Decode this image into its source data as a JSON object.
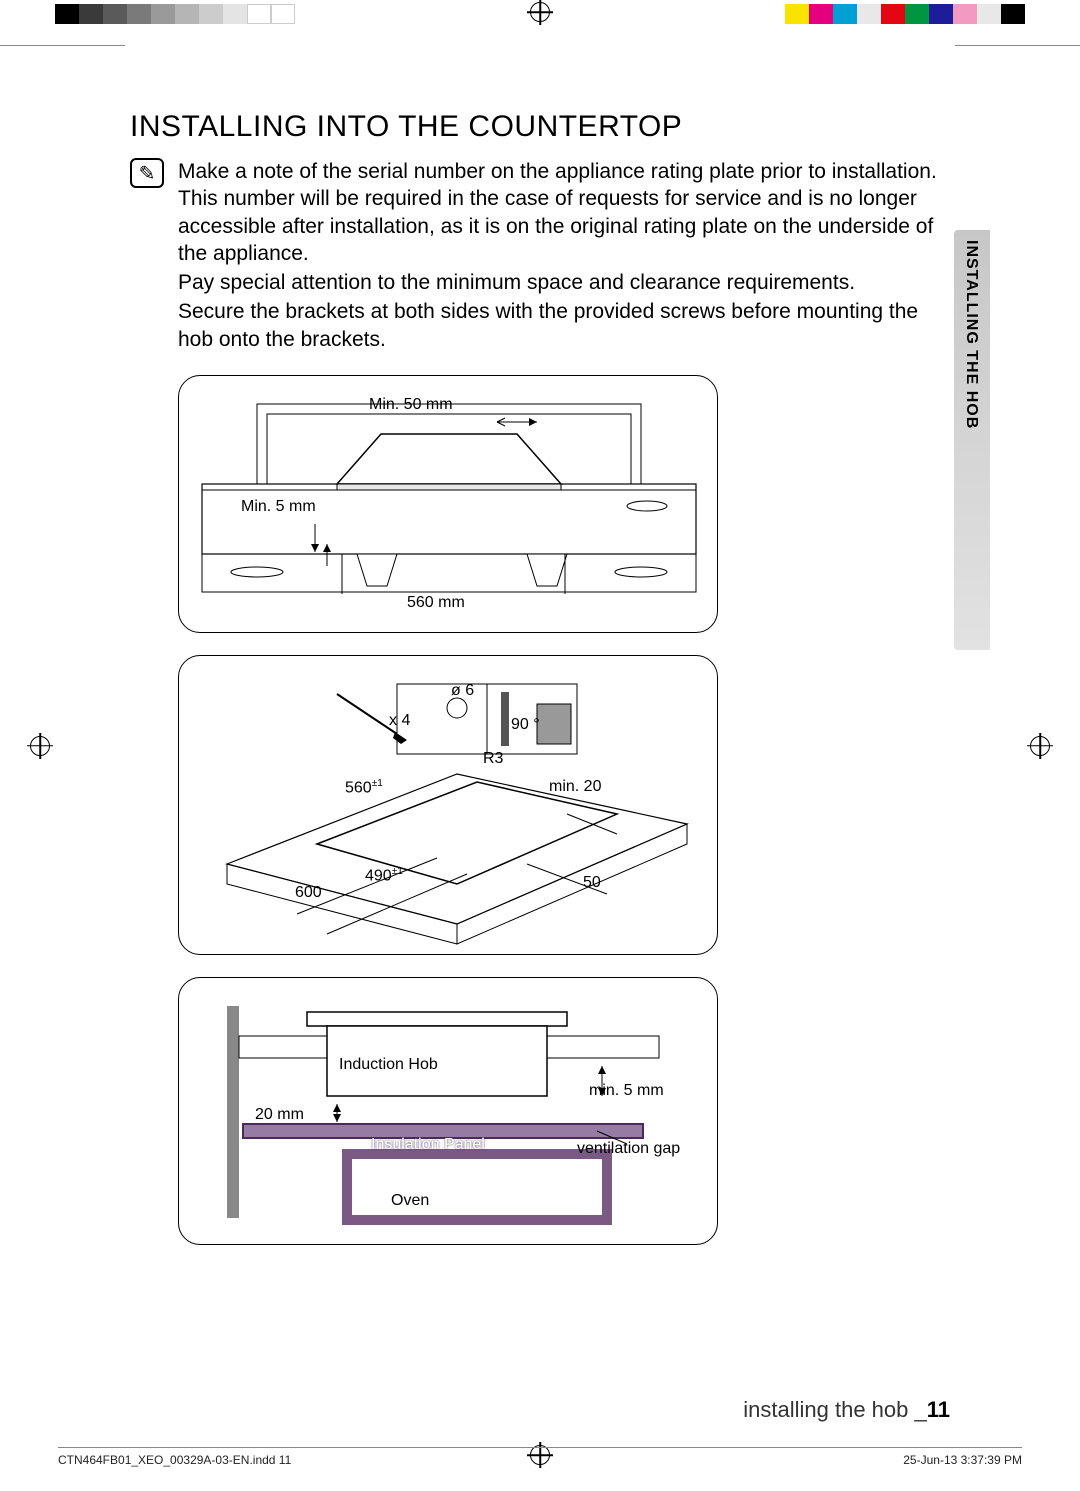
{
  "colorBars": [
    "#000000",
    "#3a3a3a",
    "#5a5a5a",
    "#7a7a7a",
    "#9a9a9a",
    "#b5b5b5",
    "#cccccc",
    "#e4e4e4",
    "#ffffff",
    "#ffffff",
    "#f9e400",
    "#e5007e",
    "#00a0d2",
    "#e8e8e8",
    "#e30613",
    "#009640",
    "#1d1d9b",
    "#f29ac1",
    "#e8e8e8",
    "#000000"
  ],
  "heading": "INSTALLING INTO THE COUNTERTOP",
  "noteIcon": "✎",
  "noteText": "Make a note of the serial number on the appliance rating plate prior to installation. This number will be required in the case of requests for service and is no longer accessible after installation, as it is on the original rating plate on the underside of the appliance.",
  "extra1": "Pay special attention to the minimum space and clearance requirements.",
  "extra2": "Secure the brackets at both sides with the provided screws before mounting the hob onto the brackets.",
  "sideTab": "INSTALLING THE HOB",
  "diagram1": {
    "labels": {
      "min50": "Min. 50 mm",
      "min5": "Min. 5 mm",
      "w560": "560 mm"
    }
  },
  "diagram2": {
    "labels": {
      "d6": "ø 6",
      "x4": "x 4",
      "a90": "90 °",
      "r3": "R3",
      "d560": "560",
      "pm1a": "±1",
      "d490": "490",
      "pm1b": "±1",
      "d600": "600",
      "min20": "min. 20",
      "d50": "50"
    }
  },
  "diagram3": {
    "labels": {
      "ind": "Induction Hob",
      "min5": "min. 5 mm",
      "g20": "20 mm",
      "insul": "Insulation Panel",
      "vent": "ventilation gap",
      "oven": "Oven"
    },
    "colors": {
      "hob": "#ffffff",
      "panelFill": "#967ba5",
      "panelStroke": "#4a2a58",
      "ovenFill": "#7a5a84",
      "ovenStroke": "#4a2a58",
      "wall": "#888"
    }
  },
  "footer": {
    "text": "installing the hob _",
    "page": "11"
  },
  "printFooter": {
    "file": "CTN464FB01_XEO_00329A-03-EN.indd   11",
    "stamp": "25-Jun-13   3:37:39 PM"
  }
}
